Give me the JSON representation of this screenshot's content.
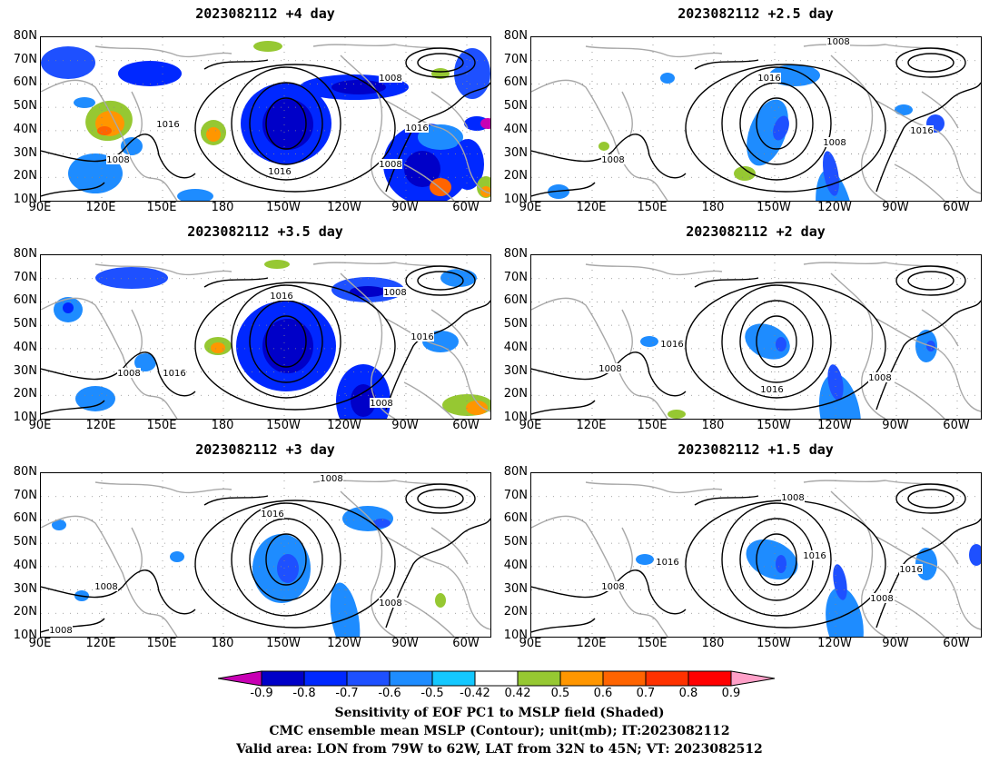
{
  "panels": [
    {
      "title": "2023082112  +4 day",
      "labels": [
        "1008",
        "1016",
        "1016",
        "1008",
        "1016",
        "1008"
      ]
    },
    {
      "title": "2023082112  +2.5 day",
      "labels": [
        "1008",
        "1016",
        "1008",
        "1016",
        "1008"
      ]
    },
    {
      "title": "2023082112  +3.5 day",
      "labels": [
        "1016",
        "1008",
        "1016",
        "1008",
        "1016",
        "1008"
      ]
    },
    {
      "title": "2023082112  +2 day",
      "labels": [
        "1016",
        "1008",
        "1016",
        "1008"
      ]
    },
    {
      "title": "2023082112  +3 day",
      "labels": [
        "1008",
        "1016",
        "1008",
        "1008",
        "1008"
      ]
    },
    {
      "title": "2023082112  +1.5 day",
      "labels": [
        "1008",
        "1016",
        "1008",
        "1016",
        "1016",
        "1008"
      ]
    }
  ],
  "axes": {
    "lat_labels": [
      "80N",
      "70N",
      "60N",
      "50N",
      "40N",
      "30N",
      "20N",
      "10N"
    ],
    "lon_labels": [
      "90E",
      "120E",
      "150E",
      "180",
      "150W",
      "120W",
      "90W",
      "60W"
    ]
  },
  "colorbar": {
    "labels": [
      "-0.9",
      "-0.8",
      "-0.7",
      "-0.6",
      "-0.5",
      "-0.42",
      "0.42",
      "0.5",
      "0.6",
      "0.7",
      "0.8",
      "0.9"
    ],
    "colors": [
      "#c800b4",
      "#0000c8",
      "#0028ff",
      "#1e50ff",
      "#1e8cff",
      "#14c8ff",
      "#ffffff",
      "#96c832",
      "#ff9600",
      "#ff6400",
      "#ff3200",
      "#ff0000",
      "#ffa0c8"
    ]
  },
  "caption": {
    "line1": "Sensitivity of EOF PC1 to MSLP field (Shaded)",
    "line2": "CMC ensemble mean MSLP (Contour); unit(mb); IT:2023082112",
    "line3": "Valid area: LON from 79W to 62W, LAT from 32N to 45N; VT: 2023082512"
  }
}
